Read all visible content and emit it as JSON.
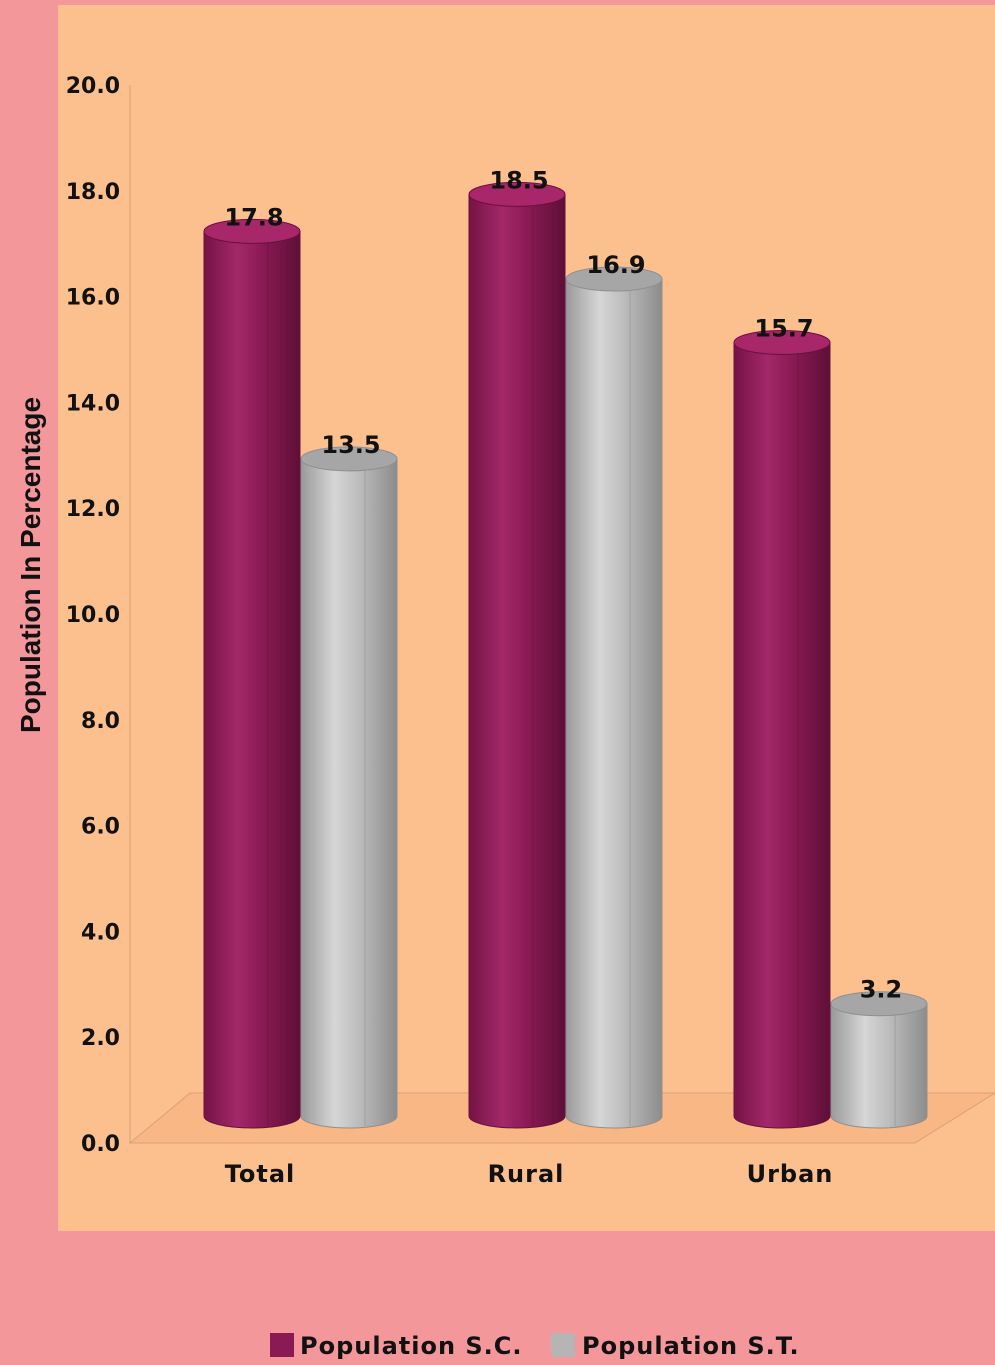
{
  "chart_data": {
    "type": "bar",
    "categories": [
      "Total",
      "Rural",
      "Urban"
    ],
    "series": [
      {
        "name": "Population S.C.",
        "values": [
          17.8,
          18.5,
          15.7
        ],
        "color": "#8b1a54"
      },
      {
        "name": "Population S.T.",
        "values": [
          13.5,
          16.9,
          3.2
        ],
        "color": "#b5b5b5"
      }
    ],
    "value_labels": [
      [
        "17.8",
        "18.5",
        "15.7"
      ],
      [
        "13.5",
        "16.9",
        "3.2"
      ]
    ],
    "ylabel": "Population In Percentage",
    "ylim": [
      0,
      20
    ],
    "yticks": [
      "0.0",
      "2.0",
      "4.0",
      "6.0",
      "8.0",
      "10.0",
      "12.0",
      "14.0",
      "16.0",
      "18.0",
      "20.0"
    ],
    "legend_position": "bottom",
    "grid": false,
    "style": "3d-cylinder"
  },
  "colors": {
    "page_background": "#f4979a",
    "plot_background": "#fcc08f"
  }
}
